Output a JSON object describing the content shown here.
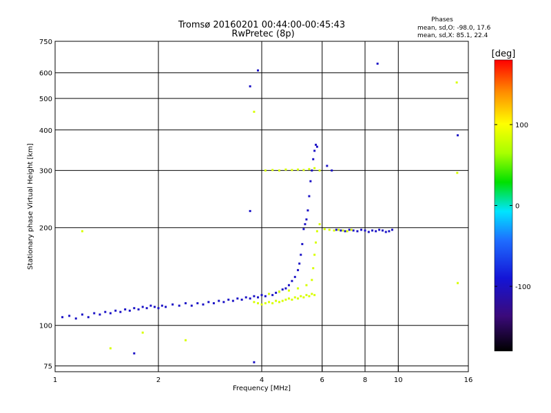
{
  "chart_data": {
    "type": "scatter",
    "title": "Tromsø 20160201 00:44:00-00:45:43",
    "subtitle": "RwPretec (8p)",
    "stats": {
      "heading": "Phases",
      "line1": "mean, sd,O: -98.0, 17.6",
      "line2": "mean, sd,X:  85.1, 22.4"
    },
    "xlabel": "Frequency [MHz]",
    "ylabel": "Stationary phase Virtual Height [km]",
    "x_scale": "log",
    "y_scale": "log",
    "xlim": [
      1,
      16
    ],
    "ylim": [
      72,
      750
    ],
    "x_ticks": [
      {
        "value": 1,
        "label": "1"
      },
      {
        "value": 2,
        "label": "2"
      },
      {
        "value": 4,
        "label": "4"
      },
      {
        "value": 6,
        "label": "6"
      },
      {
        "value": 8,
        "label": "8"
      },
      {
        "value": 10,
        "label": "10"
      },
      {
        "value": 16,
        "label": "16"
      }
    ],
    "y_ticks": [
      {
        "value": 75,
        "label": "75"
      },
      {
        "value": 100,
        "label": "100"
      },
      {
        "value": 200,
        "label": "200"
      },
      {
        "value": 300,
        "label": "300"
      },
      {
        "value": 400,
        "label": "400"
      },
      {
        "value": 500,
        "label": "500"
      },
      {
        "value": 600,
        "label": "600"
      },
      {
        "value": 750,
        "label": "750"
      }
    ],
    "grid": true,
    "colorbar": {
      "label": "[deg]",
      "range": [
        -180,
        180
      ],
      "ticks": [
        {
          "value": 100,
          "label": "100"
        },
        {
          "value": 0,
          "label": "0"
        },
        {
          "value": -100,
          "label": "-100"
        }
      ]
    },
    "series": [
      {
        "name": "O",
        "phase_deg": -98,
        "points": [
          [
            1.05,
            106
          ],
          [
            1.1,
            107
          ],
          [
            1.15,
            105
          ],
          [
            1.2,
            108
          ],
          [
            1.25,
            106
          ],
          [
            1.3,
            109
          ],
          [
            1.35,
            108
          ],
          [
            1.4,
            110
          ],
          [
            1.45,
            109
          ],
          [
            1.5,
            111
          ],
          [
            1.55,
            110
          ],
          [
            1.6,
            112
          ],
          [
            1.65,
            111
          ],
          [
            1.7,
            113
          ],
          [
            1.75,
            112
          ],
          [
            1.8,
            114
          ],
          [
            1.85,
            113
          ],
          [
            1.9,
            115
          ],
          [
            1.95,
            114
          ],
          [
            2.0,
            113
          ],
          [
            2.05,
            115
          ],
          [
            2.1,
            114
          ],
          [
            2.2,
            116
          ],
          [
            2.3,
            115
          ],
          [
            2.4,
            117
          ],
          [
            2.5,
            115
          ],
          [
            2.6,
            117
          ],
          [
            2.7,
            116
          ],
          [
            2.8,
            118
          ],
          [
            2.9,
            117
          ],
          [
            3.0,
            119
          ],
          [
            3.1,
            118
          ],
          [
            3.2,
            120
          ],
          [
            3.3,
            119
          ],
          [
            3.4,
            121
          ],
          [
            3.5,
            120
          ],
          [
            3.6,
            122
          ],
          [
            3.7,
            121
          ],
          [
            3.8,
            123
          ],
          [
            3.9,
            122
          ],
          [
            4.0,
            124
          ],
          [
            4.1,
            123
          ],
          [
            4.2,
            125
          ],
          [
            4.3,
            124
          ],
          [
            4.4,
            126
          ],
          [
            4.5,
            127
          ],
          [
            4.6,
            129
          ],
          [
            4.7,
            130
          ],
          [
            4.8,
            133
          ],
          [
            4.9,
            137
          ],
          [
            5.0,
            141
          ],
          [
            5.1,
            148
          ],
          [
            5.15,
            155
          ],
          [
            5.2,
            165
          ],
          [
            5.25,
            178
          ],
          [
            5.3,
            198
          ],
          [
            5.35,
            205
          ],
          [
            5.4,
            212
          ],
          [
            5.45,
            226
          ],
          [
            5.5,
            250
          ],
          [
            5.55,
            278
          ],
          [
            5.6,
            300
          ],
          [
            5.65,
            325
          ],
          [
            5.7,
            345
          ],
          [
            5.75,
            360
          ],
          [
            5.8,
            355
          ],
          [
            6.2,
            310
          ],
          [
            6.4,
            300
          ],
          [
            6.6,
            197
          ],
          [
            6.8,
            196
          ],
          [
            7.0,
            195
          ],
          [
            7.2,
            197
          ],
          [
            7.4,
            196
          ],
          [
            7.6,
            195
          ],
          [
            7.8,
            197
          ],
          [
            8.0,
            196
          ],
          [
            8.2,
            194
          ],
          [
            8.4,
            196
          ],
          [
            8.6,
            195
          ],
          [
            8.8,
            197
          ],
          [
            9.0,
            196
          ],
          [
            9.2,
            194
          ],
          [
            9.4,
            195
          ],
          [
            9.6,
            197
          ],
          [
            3.9,
            610
          ],
          [
            3.7,
            545
          ],
          [
            8.7,
            640
          ],
          [
            14.9,
            385
          ],
          [
            1.7,
            82
          ],
          [
            3.8,
            77
          ],
          [
            3.7,
            225
          ]
        ]
      },
      {
        "name": "X",
        "phase_deg": 85,
        "points": [
          [
            3.8,
            118
          ],
          [
            3.9,
            117
          ],
          [
            4.0,
            116
          ],
          [
            4.1,
            117
          ],
          [
            4.2,
            118
          ],
          [
            4.3,
            117
          ],
          [
            4.4,
            119
          ],
          [
            4.5,
            118
          ],
          [
            4.6,
            119
          ],
          [
            4.7,
            120
          ],
          [
            4.8,
            121
          ],
          [
            4.9,
            120
          ],
          [
            5.0,
            122
          ],
          [
            5.1,
            121
          ],
          [
            5.2,
            123
          ],
          [
            5.3,
            122
          ],
          [
            5.4,
            124
          ],
          [
            5.5,
            123
          ],
          [
            5.6,
            125
          ],
          [
            5.7,
            124
          ],
          [
            4.2,
            125
          ],
          [
            4.5,
            127
          ],
          [
            4.8,
            128
          ],
          [
            5.1,
            130
          ],
          [
            5.4,
            133
          ],
          [
            5.6,
            138
          ],
          [
            5.65,
            150
          ],
          [
            5.7,
            165
          ],
          [
            5.75,
            180
          ],
          [
            5.8,
            195
          ],
          [
            5.9,
            205
          ],
          [
            4.1,
            300
          ],
          [
            4.3,
            301
          ],
          [
            4.5,
            300
          ],
          [
            4.7,
            302
          ],
          [
            4.9,
            301
          ],
          [
            5.1,
            302
          ],
          [
            5.3,
            301
          ],
          [
            5.5,
            303
          ],
          [
            5.7,
            305
          ],
          [
            5.9,
            300
          ],
          [
            6.1,
            198
          ],
          [
            6.3,
            197
          ],
          [
            6.5,
            196
          ],
          [
            6.7,
            197
          ],
          [
            6.9,
            196
          ],
          [
            7.1,
            195
          ],
          [
            7.3,
            197
          ],
          [
            14.8,
            560
          ],
          [
            14.9,
            135
          ],
          [
            14.85,
            295
          ],
          [
            1.2,
            195
          ],
          [
            1.45,
            85
          ],
          [
            1.8,
            95
          ],
          [
            2.4,
            90
          ],
          [
            3.8,
            455
          ]
        ]
      }
    ]
  }
}
